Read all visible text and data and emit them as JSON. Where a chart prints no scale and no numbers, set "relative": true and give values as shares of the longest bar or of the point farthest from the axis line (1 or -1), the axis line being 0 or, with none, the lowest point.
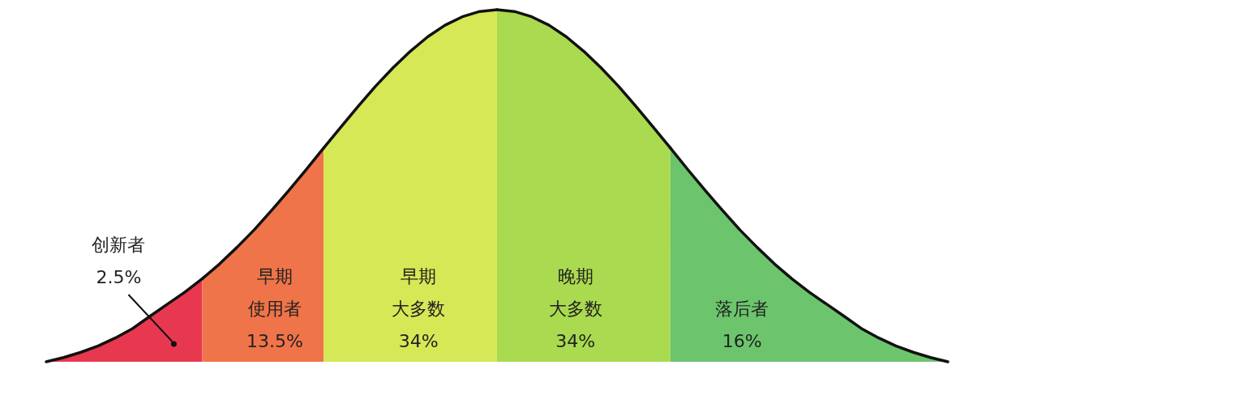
{
  "chart_data": {
    "type": "area",
    "relative": true,
    "categories": [
      null,
      null,
      null,
      null,
      null,
      null,
      null,
      null,
      null,
      null,
      null,
      null,
      null,
      null,
      null,
      null,
      null,
      null,
      null,
      null,
      null,
      null,
      null,
      null,
      null,
      null,
      null,
      null,
      null,
      null,
      null,
      null,
      null,
      null,
      null,
      null,
      null,
      null,
      null,
      null,
      null,
      null,
      null,
      null,
      null,
      null,
      null,
      null,
      null,
      null,
      null,
      null,
      null
    ],
    "series": [
      {
        "name": "创新者",
        "color": "#e8384f",
        "values": [
          0,
          0.012,
          0.027,
          0.045,
          0.068,
          0.095,
          0.13,
          0.164,
          0.198,
          0.236,
          null,
          null,
          null,
          null,
          null,
          null,
          null,
          null,
          null,
          null,
          null,
          null,
          null,
          null,
          null,
          null,
          null,
          null,
          null,
          null,
          null,
          null,
          null,
          null,
          null,
          null,
          null,
          null,
          null,
          null,
          null,
          null,
          null,
          null,
          null,
          null,
          null,
          null,
          null,
          null,
          null,
          null,
          null
        ]
      },
      {
        "name": "早期使用者",
        "color": "#f07449",
        "values": [
          null,
          null,
          null,
          null,
          null,
          null,
          null,
          null,
          null,
          0.236,
          0.278,
          0.325,
          0.375,
          0.43,
          0.487,
          0.546,
          0.607,
          null,
          null,
          null,
          null,
          null,
          null,
          null,
          null,
          null,
          null,
          null,
          null,
          null,
          null,
          null,
          null,
          null,
          null,
          null,
          null,
          null,
          null,
          null,
          null,
          null,
          null,
          null,
          null,
          null,
          null,
          null,
          null,
          null,
          null,
          null,
          null
        ]
      },
      {
        "name": "早期大多数",
        "color": "#d6e855",
        "values": [
          null,
          null,
          null,
          null,
          null,
          null,
          null,
          null,
          null,
          null,
          null,
          null,
          null,
          null,
          null,
          null,
          0.607,
          0.667,
          0.726,
          0.783,
          0.835,
          0.882,
          0.923,
          0.956,
          0.98,
          0.995,
          1,
          null,
          null,
          null,
          null,
          null,
          null,
          null,
          null,
          null,
          null,
          null,
          null,
          null,
          null,
          null,
          null,
          null,
          null,
          null,
          null,
          null,
          null,
          null,
          null,
          null,
          null
        ]
      },
      {
        "name": "晚期大多数",
        "color": "#aada4f",
        "values": [
          null,
          null,
          null,
          null,
          null,
          null,
          null,
          null,
          null,
          null,
          null,
          null,
          null,
          null,
          null,
          null,
          null,
          null,
          null,
          null,
          null,
          null,
          null,
          null,
          null,
          null,
          1,
          0.995,
          0.98,
          0.956,
          0.923,
          0.882,
          0.835,
          0.783,
          0.726,
          0.667,
          0.607,
          null,
          null,
          null,
          null,
          null,
          null,
          null,
          null,
          null,
          null,
          null,
          null,
          null,
          null,
          null,
          null
        ]
      },
      {
        "name": "落后者",
        "color": "#6cc56c",
        "values": [
          null,
          null,
          null,
          null,
          null,
          null,
          null,
          null,
          null,
          null,
          null,
          null,
          null,
          null,
          null,
          null,
          null,
          null,
          null,
          null,
          null,
          null,
          null,
          null,
          null,
          null,
          null,
          null,
          null,
          null,
          null,
          null,
          null,
          null,
          null,
          null,
          0.607,
          0.546,
          0.487,
          0.43,
          0.375,
          0.325,
          0.278,
          0.236,
          0.198,
          0.164,
          0.13,
          0.095,
          0.068,
          0.045,
          0.027,
          0.012,
          0
        ]
      }
    ],
    "annotations": [
      "2.5%",
      "13.5%",
      "34%",
      "34%",
      "16%"
    ]
  }
}
